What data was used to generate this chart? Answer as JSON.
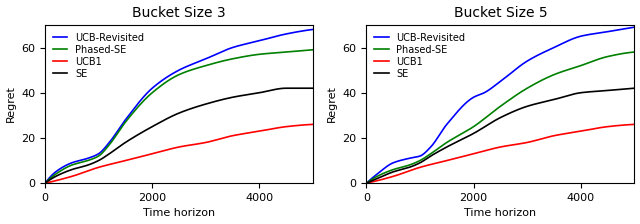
{
  "title1": "Bucket Size 3",
  "title2": "Bucket Size 5",
  "xlabel": "Time horizon",
  "ylabel": "Regret",
  "xlim": [
    0,
    5000
  ],
  "ylim": [
    0,
    70
  ],
  "yticks": [
    0,
    20,
    40,
    60
  ],
  "xticks": [
    0,
    2000,
    4000
  ],
  "legend_labels": [
    "UCB-Revisited",
    "Phased-SE",
    "UCB1",
    "SE"
  ],
  "colors": [
    "blue",
    "green",
    "red",
    "black"
  ],
  "t_max": 5000,
  "n_points": 500,
  "b3": {
    "UCB_Revisited": {
      "t_points": [
        0,
        200,
        500,
        800,
        1000,
        1200,
        1500,
        2000,
        2500,
        3000,
        3500,
        4000,
        4500,
        5000
      ],
      "y_points": [
        0,
        5,
        9,
        11,
        13,
        18,
        28,
        42,
        50,
        55,
        60,
        63,
        66,
        68
      ]
    },
    "Phased_SE": {
      "t_points": [
        0,
        200,
        500,
        800,
        1000,
        1200,
        1500,
        2000,
        2500,
        3000,
        3500,
        4000,
        4500,
        5000
      ],
      "y_points": [
        0,
        4,
        8,
        10,
        12,
        17,
        27,
        40,
        48,
        52,
        55,
        57,
        58,
        59
      ]
    },
    "UCB1": {
      "t_points": [
        0,
        500,
        1000,
        1500,
        2000,
        2500,
        3000,
        3500,
        4000,
        4500,
        5000
      ],
      "y_points": [
        0,
        3,
        7,
        10,
        13,
        16,
        18,
        21,
        23,
        25,
        26
      ]
    },
    "SE": {
      "t_points": [
        0,
        200,
        500,
        800,
        1000,
        1200,
        1500,
        2000,
        2500,
        3000,
        3500,
        4000,
        4500,
        5000
      ],
      "y_points": [
        0,
        3,
        6,
        8,
        10,
        13,
        18,
        25,
        31,
        35,
        38,
        40,
        42,
        42
      ]
    }
  },
  "b5": {
    "UCB_Revisited": {
      "t_points": [
        0,
        200,
        500,
        800,
        1000,
        1200,
        1500,
        2000,
        2200,
        2500,
        3000,
        3500,
        4000,
        4500,
        5000
      ],
      "y_points": [
        0,
        4,
        9,
        11,
        12,
        16,
        26,
        38,
        40,
        45,
        54,
        60,
        65,
        67,
        69
      ]
    },
    "Phased_SE": {
      "t_points": [
        0,
        200,
        500,
        800,
        1000,
        1200,
        1500,
        2000,
        2500,
        3000,
        3500,
        4000,
        4500,
        5000
      ],
      "y_points": [
        0,
        3,
        6,
        8,
        10,
        13,
        18,
        25,
        34,
        42,
        48,
        52,
        56,
        58
      ]
    },
    "UCB1": {
      "t_points": [
        0,
        500,
        1000,
        1500,
        2000,
        2500,
        3000,
        3500,
        4000,
        4500,
        5000
      ],
      "y_points": [
        0,
        3,
        7,
        10,
        13,
        16,
        18,
        21,
        23,
        25,
        26
      ]
    },
    "SE": {
      "t_points": [
        0,
        200,
        500,
        800,
        1000,
        1200,
        1500,
        2000,
        2500,
        3000,
        3500,
        4000,
        4500,
        5000
      ],
      "y_points": [
        0,
        2,
        5,
        7,
        9,
        12,
        16,
        22,
        29,
        34,
        37,
        40,
        41,
        42
      ]
    }
  },
  "figsize": [
    6.4,
    2.24
  ],
  "dpi": 100,
  "linewidth": 1.2,
  "legend_fontsize": 7,
  "title_fontsize": 10,
  "label_fontsize": 8,
  "tick_fontsize": 8
}
